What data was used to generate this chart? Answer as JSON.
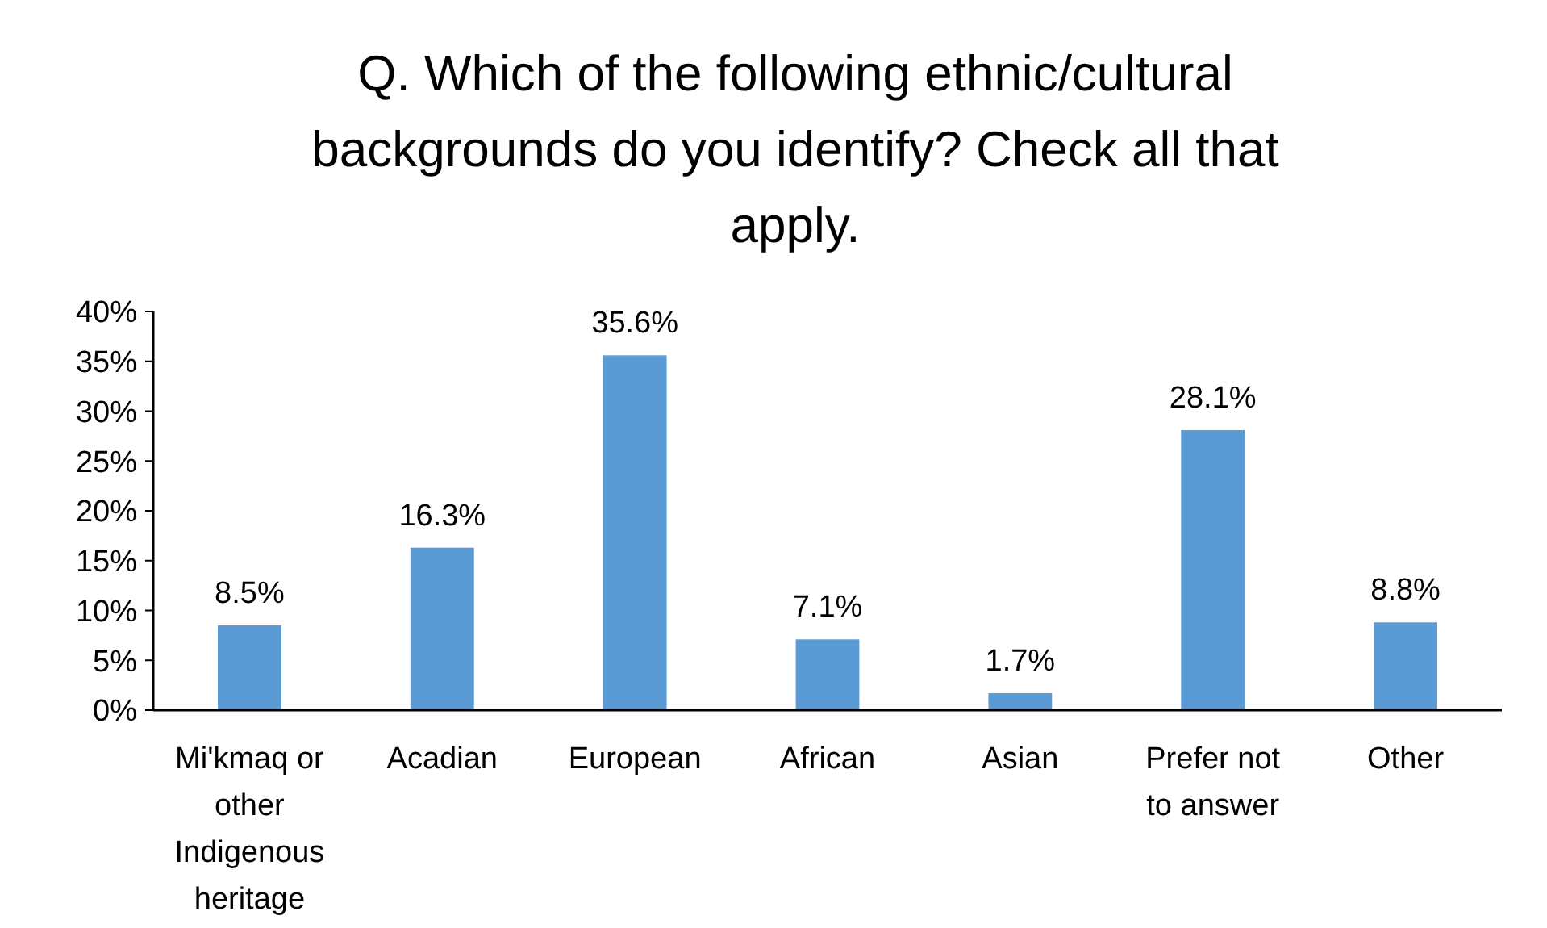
{
  "chart_data": {
    "type": "bar",
    "title": "Q. Which of the following ethnic/cultural backgrounds do you identify? Check all that apply.",
    "categories": [
      "Mi'kmaq or other Indigenous heritage",
      "Acadian",
      "European",
      "African",
      "Asian",
      "Prefer not to answer",
      "Other"
    ],
    "values": [
      8.5,
      16.3,
      35.6,
      7.1,
      1.7,
      28.1,
      8.8
    ],
    "value_labels": [
      "8.5%",
      "16.3%",
      "35.6%",
      "7.1%",
      "1.7%",
      "28.1%",
      "8.8%"
    ],
    "color": "#5b9bd5",
    "ylim": [
      0,
      40
    ],
    "yticks": [
      {
        "value": 0,
        "label": "0%"
      },
      {
        "value": 5,
        "label": "5%"
      },
      {
        "value": 10,
        "label": "10%"
      },
      {
        "value": 15,
        "label": "15%"
      },
      {
        "value": 20,
        "label": "20%"
      },
      {
        "value": 25,
        "label": "25%"
      },
      {
        "value": 30,
        "label": "30%"
      },
      {
        "value": 35,
        "label": "35%"
      },
      {
        "value": 40,
        "label": "40%"
      }
    ],
    "grid": false
  }
}
